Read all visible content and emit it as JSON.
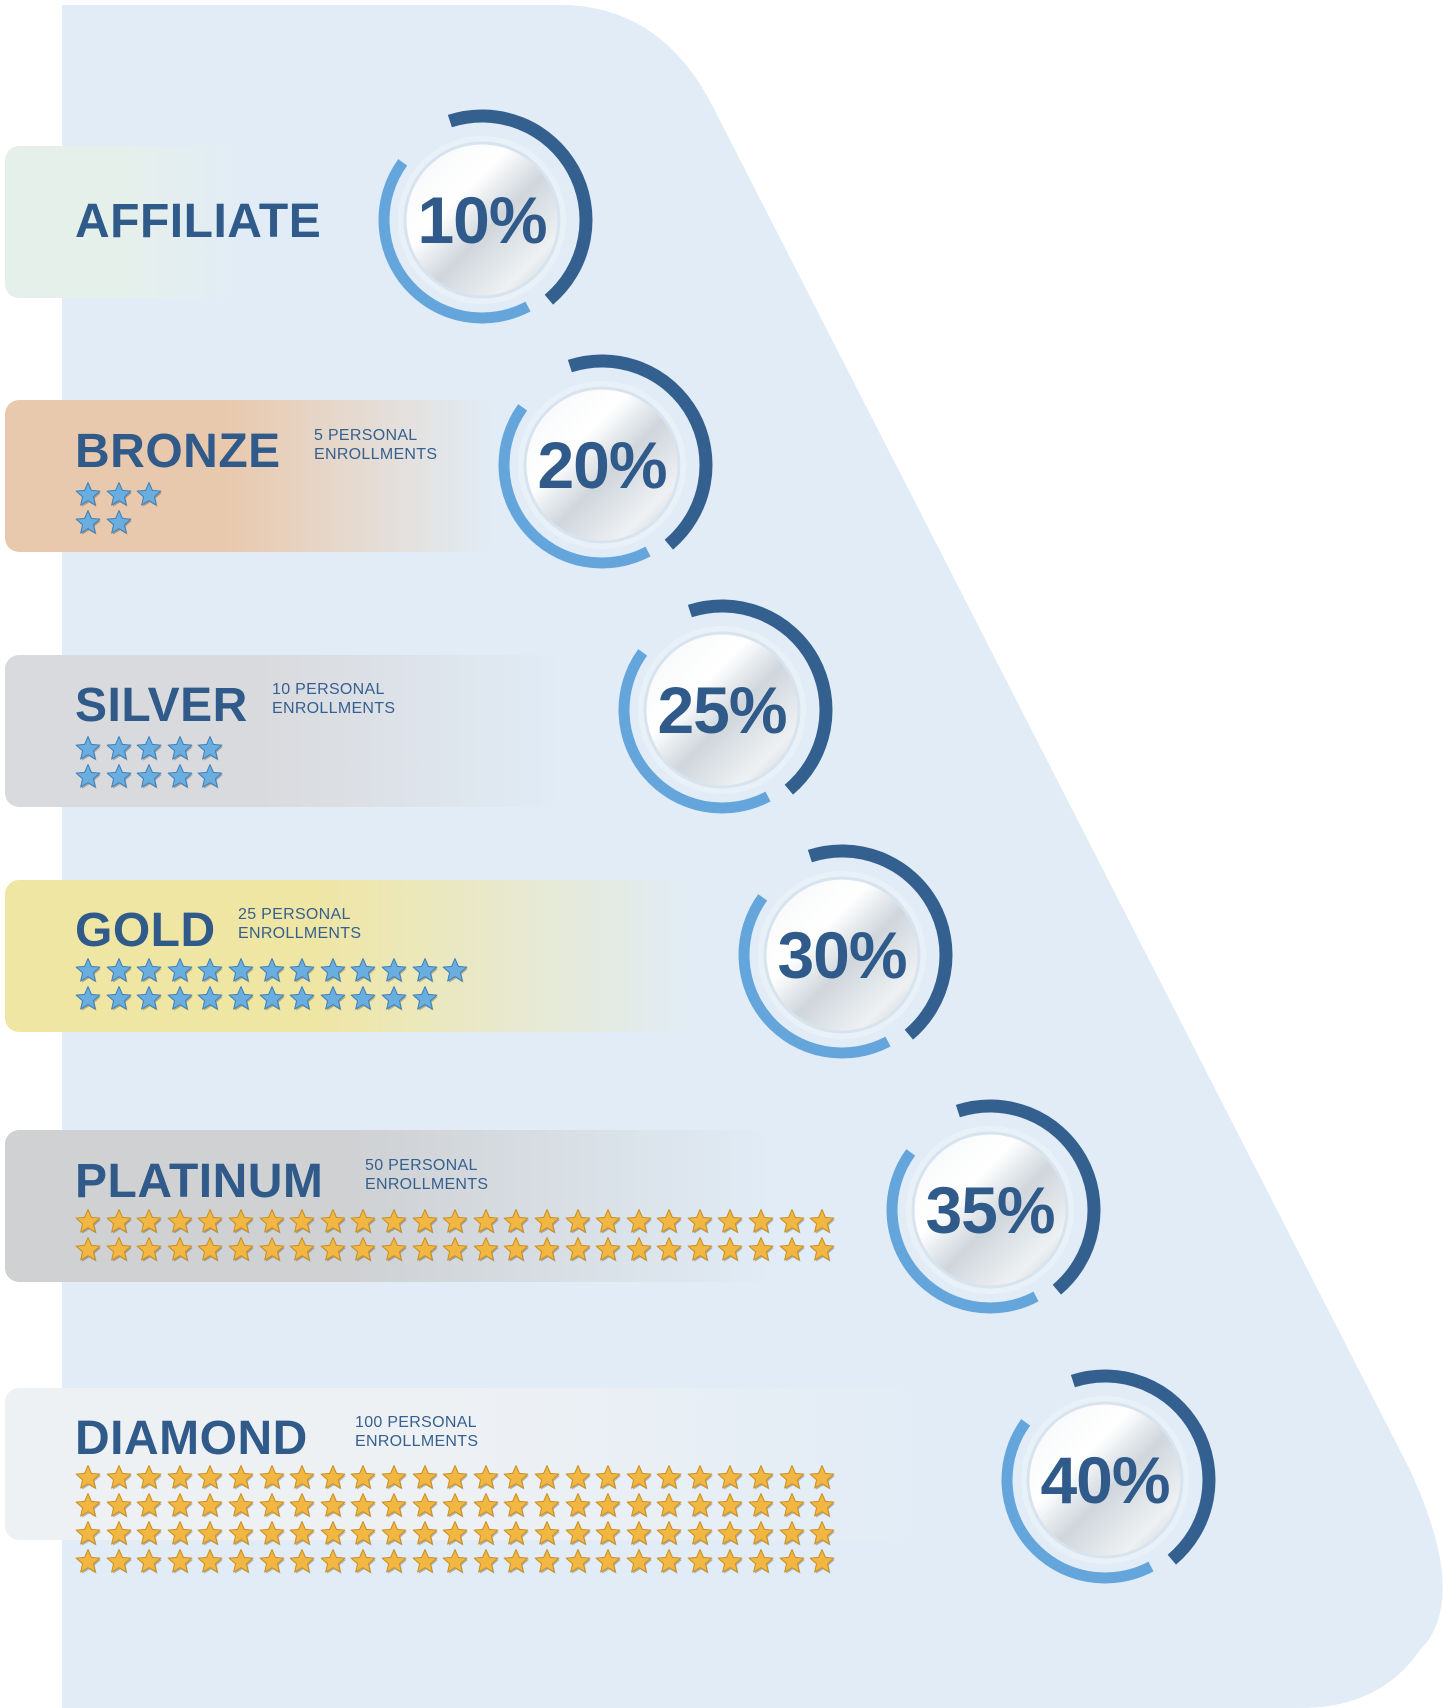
{
  "colors": {
    "background_shape": "#e1ecf6",
    "text": "#2f5a89",
    "ring_dark": "#34608f",
    "ring_light": "#64a6db",
    "star_blue": "#6aaee0",
    "star_gold": "#f2b743"
  },
  "tiers": [
    {
      "name": "AFFILIATE",
      "requirement_line1": "",
      "requirement_line2": "",
      "percent": "10%",
      "stars": 0,
      "star_color": "blue",
      "band_color": "#e6f0ea"
    },
    {
      "name": "BRONZE",
      "requirement_line1": "5 PERSONAL",
      "requirement_line2": "ENROLLMENTS",
      "percent": "20%",
      "stars": 5,
      "star_color": "blue",
      "band_color": "#e9c9ad"
    },
    {
      "name": "SILVER",
      "requirement_line1": "10 PERSONAL",
      "requirement_line2": "ENROLLMENTS",
      "percent": "25%",
      "stars": 10,
      "star_color": "blue",
      "band_color": "#d9dadd"
    },
    {
      "name": "GOLD",
      "requirement_line1": "25 PERSONAL",
      "requirement_line2": "ENROLLMENTS",
      "percent": "30%",
      "stars": 25,
      "star_color": "blue",
      "band_color": "#efe6a4"
    },
    {
      "name": "PLATINUM",
      "requirement_line1": "50 PERSONAL",
      "requirement_line2": "ENROLLMENTS",
      "percent": "35%",
      "stars": 50,
      "star_color": "gold",
      "band_color": "#cfd1d3"
    },
    {
      "name": "DIAMOND",
      "requirement_line1": "100 PERSONAL",
      "requirement_line2": "ENROLLMENTS",
      "percent": "40%",
      "stars": 100,
      "star_color": "gold",
      "band_color": "#eef1f4"
    }
  ]
}
